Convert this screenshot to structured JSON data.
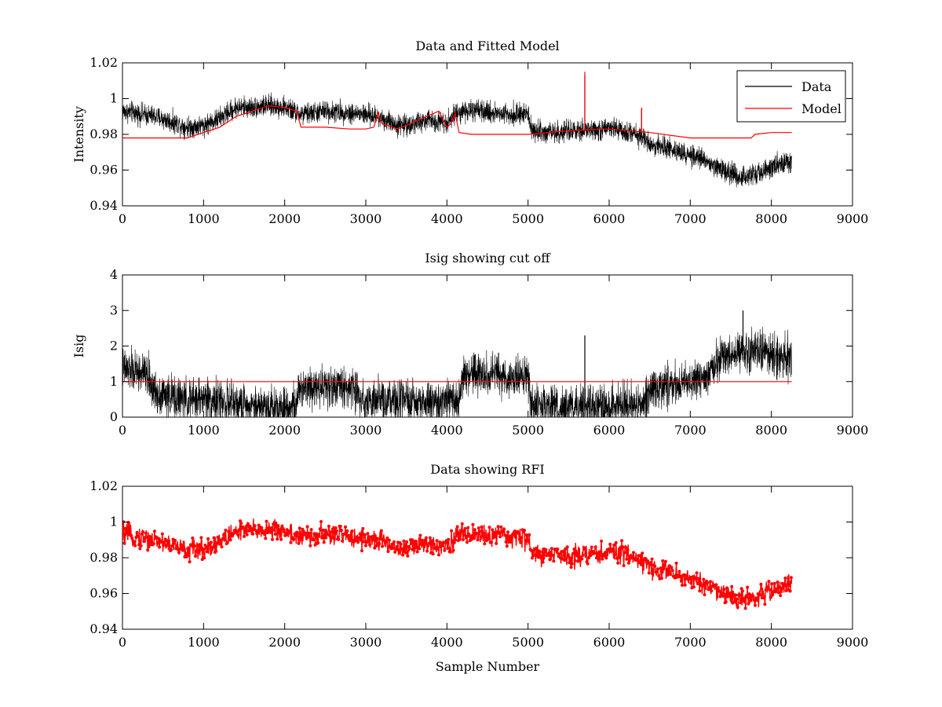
{
  "chart_data": [
    {
      "type": "line",
      "title": "Data and Fitted Model",
      "xlabel": "",
      "ylabel": "Intensity",
      "xlim": [
        0,
        9000
      ],
      "ylim": [
        0.94,
        1.02
      ],
      "xticks": [
        0,
        1000,
        2000,
        3000,
        4000,
        5000,
        6000,
        7000,
        8000,
        9000
      ],
      "yticks": [
        0.94,
        0.96,
        0.98,
        1,
        1.02
      ],
      "xtick_labels": [
        "0",
        "1000",
        "2000",
        "3000",
        "4000",
        "5000",
        "6000",
        "7000",
        "8000",
        "9000"
      ],
      "ytick_labels": [
        "0.94",
        "0.96",
        "0.98",
        "1",
        "1.02"
      ],
      "grid": false,
      "legend": {
        "position": "top-right",
        "entries": [
          "Data",
          "Model"
        ]
      },
      "series": [
        {
          "name": "Data",
          "color": "#000000",
          "style": "noisy-line",
          "noise": 0.0045,
          "x": [
            0,
            400,
            800,
            1000,
            1200,
            1400,
            1600,
            1800,
            2000,
            2200,
            2500,
            2800,
            3000,
            3200,
            3400,
            3600,
            3800,
            4000,
            4150,
            4300,
            4600,
            5000,
            5050,
            5400,
            5700,
            6000,
            6300,
            6500,
            6800,
            7000,
            7300,
            7600,
            7800,
            8000,
            8250
          ],
          "y": [
            0.993,
            0.99,
            0.984,
            0.985,
            0.989,
            0.995,
            0.995,
            0.996,
            0.995,
            0.991,
            0.993,
            0.992,
            0.991,
            0.989,
            0.985,
            0.986,
            0.988,
            0.987,
            0.993,
            0.993,
            0.992,
            0.991,
            0.982,
            0.981,
            0.982,
            0.983,
            0.981,
            0.975,
            0.971,
            0.968,
            0.963,
            0.956,
            0.958,
            0.962,
            0.965
          ],
          "spikes": [
            {
              "x": 5700,
              "y": 1.013
            },
            {
              "x": 6400,
              "y": 0.994
            }
          ]
        },
        {
          "name": "Model",
          "color": "#ff0000",
          "style": "line",
          "x": [
            0,
            800,
            1000,
            1200,
            1400,
            1600,
            1800,
            2000,
            2150,
            2200,
            2500,
            2800,
            3000,
            3100,
            3150,
            3200,
            3400,
            3600,
            3800,
            3900,
            4000,
            4050,
            4100,
            4150,
            4300,
            5000,
            5500,
            6000,
            6500,
            7000,
            7500,
            7750,
            7800,
            8000,
            8250
          ],
          "y": [
            0.978,
            0.978,
            0.981,
            0.984,
            0.99,
            0.993,
            0.996,
            0.995,
            0.993,
            0.984,
            0.984,
            0.983,
            0.983,
            0.984,
            0.992,
            0.986,
            0.983,
            0.987,
            0.991,
            0.993,
            0.984,
            0.986,
            0.992,
            0.981,
            0.98,
            0.98,
            0.982,
            0.983,
            0.981,
            0.978,
            0.978,
            0.978,
            0.98,
            0.981,
            0.981
          ],
          "spikes": [
            {
              "x": 5700,
              "y": 1.015
            },
            {
              "x": 6400,
              "y": 0.995
            }
          ]
        }
      ]
    },
    {
      "type": "line",
      "title": "Isig showing cut off",
      "xlabel": "",
      "ylabel": "Isig",
      "xlim": [
        0,
        9000
      ],
      "ylim": [
        0,
        4
      ],
      "xticks": [
        0,
        1000,
        2000,
        3000,
        4000,
        5000,
        6000,
        7000,
        8000,
        9000
      ],
      "yticks": [
        0,
        1,
        2,
        3,
        4
      ],
      "xtick_labels": [
        "0",
        "1000",
        "2000",
        "3000",
        "4000",
        "5000",
        "6000",
        "7000",
        "8000",
        "9000"
      ],
      "ytick_labels": [
        "0",
        "1",
        "2",
        "3",
        "4"
      ],
      "grid": false,
      "series": [
        {
          "color": "#000000",
          "style": "noisy-line",
          "noise": 0.45,
          "floor": 0,
          "x": [
            0,
            300,
            400,
            800,
            1000,
            1400,
            2000,
            2150,
            2200,
            2800,
            3000,
            4000,
            4150,
            4200,
            5000,
            5050,
            5500,
            6000,
            6400,
            6500,
            7000,
            7200,
            7300,
            7600,
            7800,
            8250
          ],
          "y": [
            1.35,
            1.2,
            0.7,
            0.45,
            0.55,
            0.35,
            0.3,
            0.35,
            0.9,
            0.85,
            0.45,
            0.4,
            0.5,
            1.2,
            1.1,
            0.3,
            0.25,
            0.3,
            0.35,
            0.8,
            1.0,
            1.1,
            1.55,
            1.85,
            1.9,
            1.65
          ],
          "spikes": [
            {
              "x": 5700,
              "y": 2.3
            },
            {
              "x": 7650,
              "y": 3.0
            }
          ]
        },
        {
          "color": "#ff0000",
          "style": "line",
          "x": [
            0,
            8250
          ],
          "y": [
            1,
            1
          ]
        }
      ]
    },
    {
      "type": "scatter",
      "title": "Data showing RFI",
      "xlabel": "Sample Number",
      "ylabel": "",
      "xlim": [
        0,
        9000
      ],
      "ylim": [
        0.94,
        1.02
      ],
      "xticks": [
        0,
        1000,
        2000,
        3000,
        4000,
        5000,
        6000,
        7000,
        8000,
        9000
      ],
      "yticks": [
        0.94,
        0.96,
        0.98,
        1,
        1.02
      ],
      "xtick_labels": [
        "0",
        "1000",
        "2000",
        "3000",
        "4000",
        "5000",
        "6000",
        "7000",
        "8000",
        "9000"
      ],
      "ytick_labels": [
        "0.94",
        "0.96",
        "0.98",
        "1",
        "1.02"
      ],
      "grid": false,
      "series": [
        {
          "color": "#ff0000",
          "style": "dotted-line",
          "noise": 0.0045,
          "x": [
            0,
            400,
            800,
            1000,
            1200,
            1400,
            1600,
            1800,
            2000,
            2200,
            2500,
            2800,
            3000,
            3200,
            3400,
            3600,
            3800,
            4000,
            4150,
            4300,
            4600,
            5000,
            5050,
            5400,
            5700,
            6000,
            6300,
            6500,
            6800,
            7000,
            7300,
            7600,
            7800,
            8000,
            8250
          ],
          "y": [
            0.993,
            0.99,
            0.984,
            0.985,
            0.989,
            0.995,
            0.995,
            0.996,
            0.995,
            0.991,
            0.993,
            0.992,
            0.991,
            0.989,
            0.985,
            0.986,
            0.988,
            0.987,
            0.993,
            0.993,
            0.992,
            0.991,
            0.982,
            0.981,
            0.982,
            0.983,
            0.981,
            0.975,
            0.971,
            0.968,
            0.963,
            0.956,
            0.958,
            0.962,
            0.965
          ]
        }
      ]
    }
  ]
}
